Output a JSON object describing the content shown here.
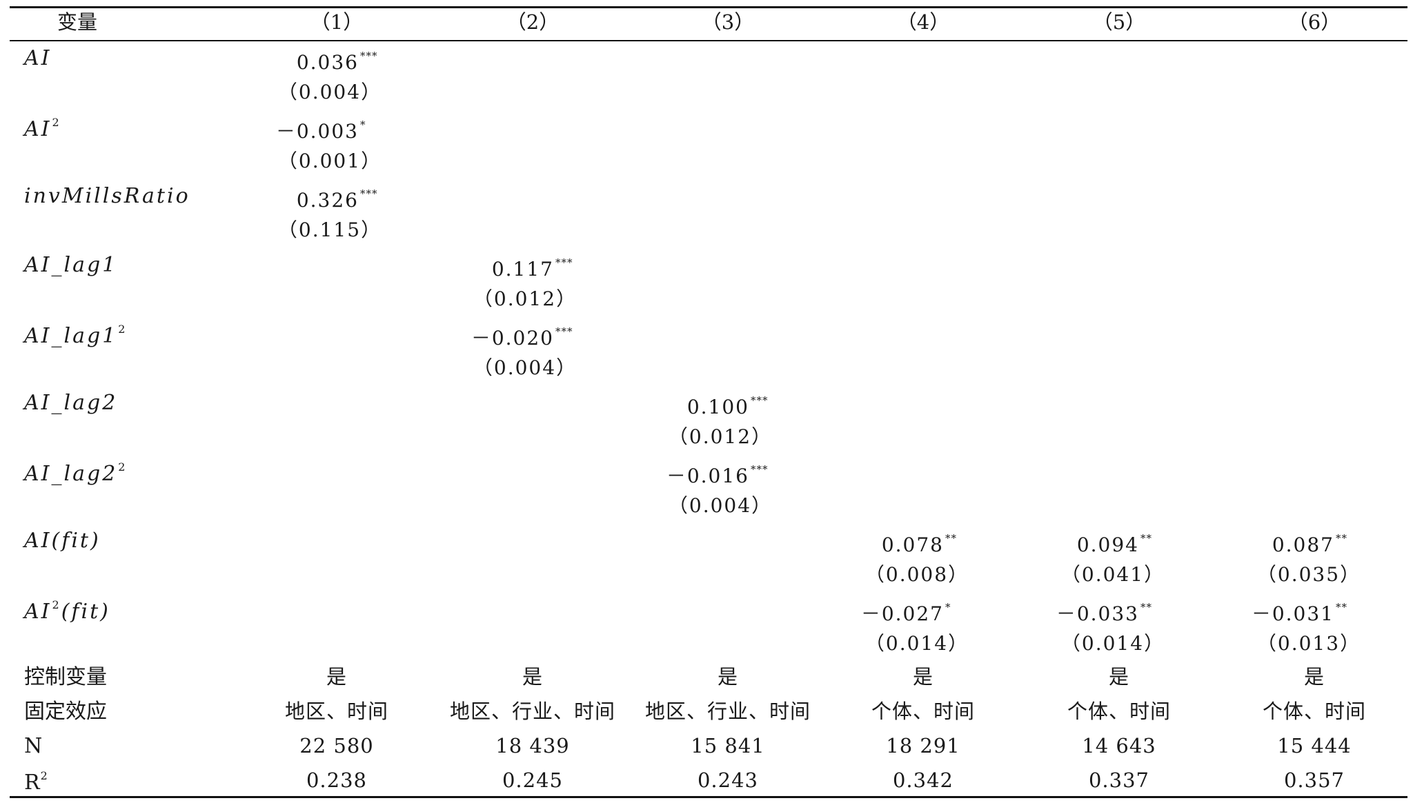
{
  "table": {
    "header": [
      "变量",
      "（1）",
      "（2）",
      "（3）",
      "（4）",
      "（5）",
      "（6）"
    ],
    "variables": [
      {
        "name": "AI",
        "sup": "",
        "entries": [
          {
            "col": 1,
            "coef": "0.036",
            "stars": "***",
            "se": "（0.004）"
          }
        ]
      },
      {
        "name": "AI",
        "sup": "2",
        "entries": [
          {
            "col": 1,
            "coef": "－0.003",
            "stars": "*",
            "se": "（0.001）"
          }
        ]
      },
      {
        "name": "invMillsRatio",
        "sup": "",
        "entries": [
          {
            "col": 1,
            "coef": "0.326",
            "stars": "***",
            "se": "（0.115）"
          }
        ]
      },
      {
        "name": "AI_lag1",
        "sup": "",
        "entries": [
          {
            "col": 2,
            "coef": "0.117",
            "stars": "***",
            "se": "（0.012）"
          }
        ]
      },
      {
        "name": "AI_lag1",
        "sup": "2",
        "entries": [
          {
            "col": 2,
            "coef": "－0.020",
            "stars": "***",
            "se": "（0.004）"
          }
        ]
      },
      {
        "name": "AI_lag2",
        "sup": "",
        "entries": [
          {
            "col": 3,
            "coef": "0.100",
            "stars": "***",
            "se": "（0.012）"
          }
        ]
      },
      {
        "name": "AI_lag2",
        "sup": "2",
        "entries": [
          {
            "col": 3,
            "coef": "－0.016",
            "stars": "***",
            "se": "（0.004）"
          }
        ]
      },
      {
        "name": "AI(fit)",
        "sup": "",
        "entries": [
          {
            "col": 4,
            "coef": "0.078",
            "stars": "**",
            "se": "（0.008）"
          },
          {
            "col": 5,
            "coef": "0.094",
            "stars": "**",
            "se": "（0.041）"
          },
          {
            "col": 6,
            "coef": "0.087",
            "stars": "**",
            "se": "（0.035）"
          }
        ]
      },
      {
        "name": "AI",
        "sup": "2",
        "suffix": "(fit)",
        "entries": [
          {
            "col": 4,
            "coef": "－0.027",
            "stars": "*",
            "se": "（0.014）"
          },
          {
            "col": 5,
            "coef": "－0.033",
            "stars": "**",
            "se": "（0.014）"
          },
          {
            "col": 6,
            "coef": "－0.031",
            "stars": "**",
            "se": "（0.013）"
          }
        ]
      }
    ],
    "stats": [
      {
        "label": "控制变量",
        "sup": "",
        "values": [
          "是",
          "是",
          "是",
          "是",
          "是",
          "是"
        ]
      },
      {
        "label": "固定效应",
        "sup": "",
        "values": [
          "地区、时间",
          "地区、行业、时间",
          "地区、行业、时间",
          "个体、时间",
          "个体、时间",
          "个体、时间"
        ]
      },
      {
        "label": "N",
        "sup": "",
        "values": [
          "22 580",
          "18 439",
          "15 841",
          "18 291",
          "14 643",
          "15 444"
        ]
      },
      {
        "label": "R",
        "sup": "2",
        "values": [
          "0.238",
          "0.245",
          "0.243",
          "0.342",
          "0.337",
          "0.357"
        ]
      }
    ]
  }
}
